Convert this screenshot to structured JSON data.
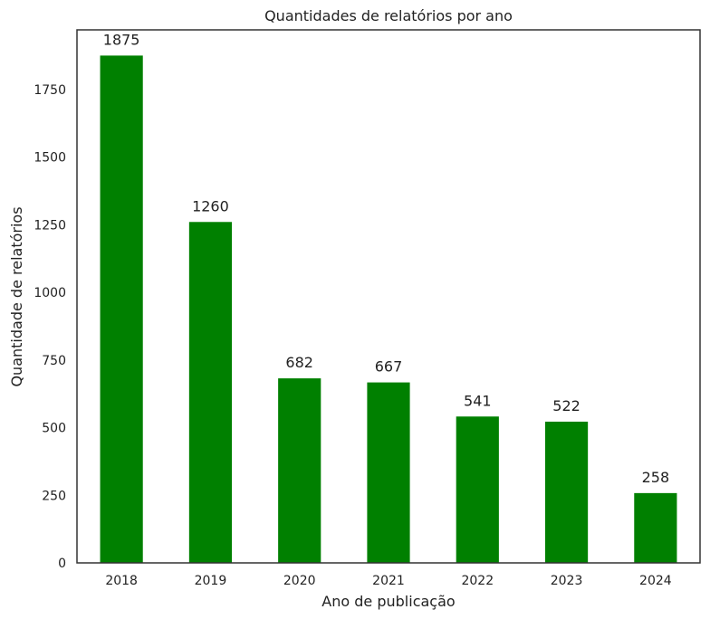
{
  "chart_data": {
    "type": "bar",
    "title": "Quantidades de relatórios por ano",
    "xlabel": "Ano de publicação",
    "ylabel": "Quantidade de relatórios",
    "categories": [
      "2018",
      "2019",
      "2020",
      "2021",
      "2022",
      "2023",
      "2024"
    ],
    "values": [
      1875,
      1260,
      682,
      667,
      541,
      522,
      258
    ],
    "ylim": [
      0,
      1970
    ],
    "yticks": [
      0,
      250,
      500,
      750,
      1000,
      1250,
      1500,
      1750
    ],
    "grid": false,
    "bar_color": "#008000",
    "data_labels": true
  }
}
